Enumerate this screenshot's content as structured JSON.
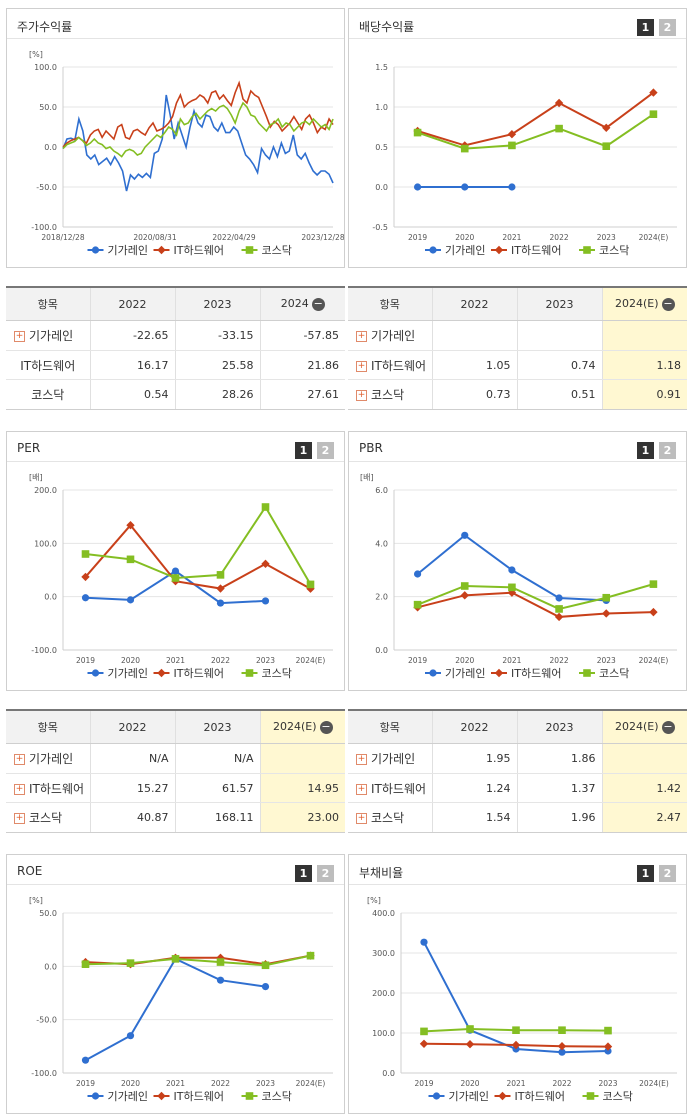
{
  "panels": {
    "stock": {
      "title": "주가수익률"
    },
    "div": {
      "title": "배당수익률",
      "btn1": "1",
      "btn2": "2"
    },
    "per": {
      "title": "PER",
      "btn1": "1",
      "btn2": "2"
    },
    "pbr": {
      "title": "PBR",
      "btn1": "1",
      "btn2": "2"
    },
    "roe": {
      "title": "ROE",
      "btn1": "1",
      "btn2": "2"
    },
    "debt": {
      "title": "부채비율",
      "btn1": "1",
      "btn2": "2"
    }
  },
  "colors": {
    "s1": "#2f6fd0",
    "s2": "#c8401a",
    "s3": "#84be22"
  },
  "chart_data": [
    {
      "id": "stock",
      "type": "line",
      "unit": "[%]",
      "ylim": [
        -100,
        100
      ],
      "yticks": [
        "100.0",
        "50.0",
        "0.0",
        "-50.0",
        "-100.0"
      ],
      "ytickvals": [
        100,
        50,
        0,
        -50,
        -100
      ],
      "xticklabels": [
        "2018/12/28",
        "2020/08/31",
        "2022/04/29",
        "2023/12/28"
      ],
      "legend": [
        "기가레인",
        "IT하드웨어",
        "코스닥"
      ],
      "series": [
        {
          "name": "기가레인",
          "values": [
            -2,
            10,
            11,
            9,
            35,
            20,
            -10,
            -15,
            -10,
            -22,
            -18,
            -14,
            -22,
            -12,
            -20,
            -30,
            -55,
            -35,
            -40,
            -34,
            -38,
            -33,
            -38,
            -8,
            -5,
            10,
            65,
            40,
            10,
            30,
            15,
            0,
            25,
            45,
            30,
            25,
            40,
            38,
            25,
            20,
            30,
            18,
            18,
            25,
            20,
            5,
            -10,
            -15,
            -22,
            -32,
            -2,
            -10,
            -15,
            0,
            -12,
            5,
            -8,
            -5,
            15,
            -10,
            -15,
            -8,
            -20,
            -30,
            -35,
            -30,
            -30,
            -34,
            -45
          ]
        },
        {
          "name": "IT하드웨어",
          "values": [
            0,
            5,
            8,
            10,
            12,
            8,
            5,
            15,
            20,
            22,
            12,
            20,
            15,
            10,
            25,
            28,
            12,
            10,
            20,
            22,
            18,
            15,
            24,
            30,
            20,
            22,
            25,
            30,
            38,
            55,
            65,
            50,
            55,
            58,
            60,
            65,
            62,
            55,
            68,
            70,
            60,
            65,
            58,
            52,
            68,
            80,
            60,
            55,
            70,
            65,
            62,
            50,
            38,
            25,
            32,
            28,
            20,
            25,
            30,
            38,
            30,
            22,
            35,
            40,
            30,
            18,
            25,
            22,
            35,
            28
          ]
        },
        {
          "name": "코스닥",
          "values": [
            -2,
            3,
            5,
            7,
            12,
            8,
            2,
            5,
            10,
            5,
            3,
            -2,
            0,
            -5,
            -8,
            -12,
            -5,
            -3,
            -5,
            -10,
            -8,
            0,
            5,
            10,
            15,
            12,
            18,
            25,
            22,
            15,
            35,
            28,
            30,
            38,
            42,
            35,
            40,
            45,
            48,
            45,
            50,
            52,
            48,
            40,
            30,
            45,
            55,
            50,
            40,
            38,
            30,
            25,
            20,
            28,
            30,
            35,
            25,
            30,
            28,
            20,
            25,
            30,
            32,
            28,
            35,
            30,
            25,
            28,
            22,
            35
          ]
        }
      ]
    },
    {
      "id": "div",
      "type": "line",
      "unit": "",
      "ylim": [
        -0.5,
        1.5
      ],
      "yticks": [
        "1.5",
        "1.0",
        "0.5",
        "0.0",
        "-0.5"
      ],
      "ytickvals": [
        1.5,
        1.0,
        0.5,
        0.0,
        -0.5
      ],
      "categories": [
        "2019",
        "2020",
        "2021",
        "2022",
        "2023",
        "2024(E)"
      ],
      "legend": [
        "기가레인",
        "IT하드웨어",
        "코스닥"
      ],
      "series": [
        {
          "name": "기가레인",
          "values": [
            0.0,
            0.0,
            0.0,
            null,
            null,
            null
          ]
        },
        {
          "name": "IT하드웨어",
          "values": [
            0.7,
            0.52,
            0.66,
            1.05,
            0.74,
            1.18
          ]
        },
        {
          "name": "코스닥",
          "values": [
            0.68,
            0.48,
            0.52,
            0.73,
            0.51,
            0.91
          ]
        }
      ]
    },
    {
      "id": "per",
      "type": "line",
      "unit": "[배]",
      "ylim": [
        -100,
        200
      ],
      "yticks": [
        "200.0",
        "100.0",
        "0.0",
        "-100.0"
      ],
      "ytickvals": [
        200,
        100,
        0,
        -100
      ],
      "categories": [
        "2019",
        "2020",
        "2021",
        "2022",
        "2023",
        "2024(E)"
      ],
      "legend": [
        "기가레인",
        "IT하드웨어",
        "코스닥"
      ],
      "series": [
        {
          "name": "기가레인",
          "values": [
            -2,
            -6,
            48,
            -12,
            -8,
            null
          ]
        },
        {
          "name": "IT하드웨어",
          "values": [
            37,
            134,
            29,
            15.27,
            61.57,
            14.95
          ]
        },
        {
          "name": "코스닥",
          "values": [
            80,
            70,
            35,
            40.87,
            168.11,
            23.0
          ]
        }
      ]
    },
    {
      "id": "pbr",
      "type": "line",
      "unit": "[배]",
      "ylim": [
        0,
        6
      ],
      "yticks": [
        "6.0",
        "4.0",
        "2.0",
        "0.0"
      ],
      "ytickvals": [
        6,
        4,
        2,
        0
      ],
      "categories": [
        "2019",
        "2020",
        "2021",
        "2022",
        "2023",
        "2024(E)"
      ],
      "legend": [
        "기가레인",
        "IT하드웨어",
        "코스닥"
      ],
      "series": [
        {
          "name": "기가레인",
          "values": [
            2.85,
            4.3,
            3.0,
            1.95,
            1.86,
            null
          ]
        },
        {
          "name": "IT하드웨어",
          "values": [
            1.6,
            2.05,
            2.15,
            1.24,
            1.37,
            1.42
          ]
        },
        {
          "name": "코스닥",
          "values": [
            1.7,
            2.4,
            2.35,
            1.54,
            1.96,
            2.47
          ]
        }
      ]
    },
    {
      "id": "roe",
      "type": "line",
      "unit": "[%]",
      "ylim": [
        -100,
        50
      ],
      "yticks": [
        "50.0",
        "0.0",
        "-50.0",
        "-100.0"
      ],
      "ytickvals": [
        50,
        0,
        -50,
        -100
      ],
      "categories": [
        "2019",
        "2020",
        "2021",
        "2022",
        "2023",
        "2024(E)"
      ],
      "legend": [
        "기가레인",
        "IT하드웨어",
        "코스닥"
      ],
      "series": [
        {
          "name": "기가레인",
          "values": [
            -88,
            -65,
            7,
            -13,
            -19,
            null
          ]
        },
        {
          "name": "IT하드웨어",
          "values": [
            4,
            2,
            8,
            8,
            2,
            10
          ]
        },
        {
          "name": "코스닥",
          "values": [
            2,
            3,
            7,
            4,
            1,
            10
          ]
        }
      ]
    },
    {
      "id": "debt",
      "type": "line",
      "unit": "[%]",
      "ylim": [
        0,
        400
      ],
      "yticks": [
        "400.0",
        "300.0",
        "200.0",
        "100.0",
        "0.0"
      ],
      "ytickvals": [
        400,
        300,
        200,
        100,
        0
      ],
      "categories": [
        "2019",
        "2020",
        "2021",
        "2022",
        "2023",
        "2024(E)"
      ],
      "legend": [
        "기가레인",
        "IT하드웨어",
        "코스닥"
      ],
      "series": [
        {
          "name": "기가레인",
          "values": [
            327,
            107,
            60,
            52,
            55,
            null
          ]
        },
        {
          "name": "IT하드웨어",
          "values": [
            73,
            72,
            70,
            67,
            66,
            null
          ]
        },
        {
          "name": "코스닥",
          "values": [
            104,
            110,
            107,
            107,
            106,
            null
          ]
        }
      ]
    }
  ],
  "tables": {
    "stock": {
      "headers": [
        "항목",
        "2022",
        "2023",
        "2024"
      ],
      "rows": [
        {
          "name": "기가레인",
          "v": [
            "-22.65",
            "-33.15",
            "-57.85"
          ]
        },
        {
          "name": "IT하드웨어",
          "v": [
            "16.17",
            "25.58",
            "21.86"
          ]
        },
        {
          "name": "코스닥",
          "v": [
            "0.54",
            "28.26",
            "27.61"
          ]
        }
      ]
    },
    "div": {
      "headers": [
        "항목",
        "2022",
        "2023",
        "2024(E)"
      ],
      "rows": [
        {
          "name": "기가레인",
          "v": [
            "",
            "",
            ""
          ]
        },
        {
          "name": "IT하드웨어",
          "v": [
            "1.05",
            "0.74",
            "1.18"
          ]
        },
        {
          "name": "코스닥",
          "v": [
            "0.73",
            "0.51",
            "0.91"
          ]
        }
      ]
    },
    "per": {
      "headers": [
        "항목",
        "2022",
        "2023",
        "2024(E)"
      ],
      "rows": [
        {
          "name": "기가레인",
          "v": [
            "N/A",
            "N/A",
            ""
          ]
        },
        {
          "name": "IT하드웨어",
          "v": [
            "15.27",
            "61.57",
            "14.95"
          ]
        },
        {
          "name": "코스닥",
          "v": [
            "40.87",
            "168.11",
            "23.00"
          ]
        }
      ]
    },
    "pbr": {
      "headers": [
        "항목",
        "2022",
        "2023",
        "2024(E)"
      ],
      "rows": [
        {
          "name": "기가레인",
          "v": [
            "1.95",
            "1.86",
            ""
          ]
        },
        {
          "name": "IT하드웨어",
          "v": [
            "1.24",
            "1.37",
            "1.42"
          ]
        },
        {
          "name": "코스닥",
          "v": [
            "1.54",
            "1.96",
            "2.47"
          ]
        }
      ]
    }
  }
}
